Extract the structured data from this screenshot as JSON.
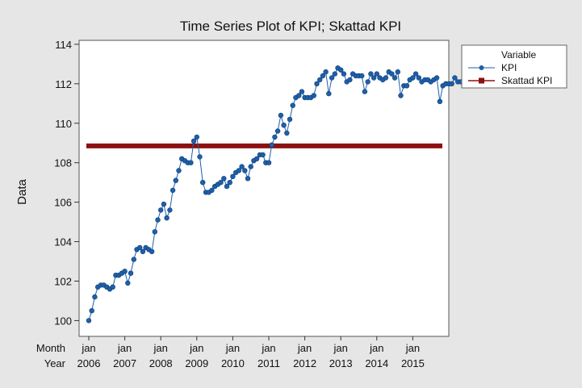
{
  "chart_data": {
    "type": "line",
    "title": "Time Series Plot of KPI; Skattad KPI",
    "ylabel": "Data",
    "xlabel_rows": [
      "Month",
      "Year"
    ],
    "ylim": [
      99.2,
      114.2
    ],
    "yticks": [
      100,
      102,
      104,
      106,
      108,
      110,
      112,
      114
    ],
    "x_tick_months": [
      "jan",
      "jan",
      "jan",
      "jan",
      "jan",
      "jan",
      "jan",
      "jan",
      "jan",
      "jan"
    ],
    "x_tick_years": [
      "2006",
      "2007",
      "2008",
      "2009",
      "2010",
      "2011",
      "2012",
      "2013",
      "2014",
      "2015"
    ],
    "start": "2006-01",
    "grid": false,
    "legend": {
      "title": "Variable",
      "placement": "right",
      "entries": [
        "KPI",
        "Skattad KPI"
      ]
    },
    "colors": {
      "KPI": "#1f5fa8",
      "Skattad KPI": "#8b1010",
      "background": "#e6e6e6",
      "plot_area": "#ffffff"
    },
    "series": [
      {
        "name": "KPI",
        "values": [
          100.0,
          100.5,
          101.2,
          101.7,
          101.8,
          101.8,
          101.7,
          101.6,
          101.7,
          102.3,
          102.3,
          102.4,
          102.5,
          101.9,
          102.4,
          103.1,
          103.6,
          103.7,
          103.5,
          103.7,
          103.6,
          103.5,
          104.5,
          105.1,
          105.6,
          105.9,
          105.2,
          105.6,
          106.6,
          107.1,
          107.6,
          108.2,
          108.1,
          108.0,
          108.0,
          109.1,
          109.3,
          108.3,
          107.0,
          106.5,
          106.5,
          106.6,
          106.8,
          106.9,
          107.0,
          107.2,
          106.8,
          107.0,
          107.3,
          107.5,
          107.6,
          107.8,
          107.6,
          107.2,
          107.8,
          108.1,
          108.2,
          108.4,
          108.4,
          108.0,
          108.0,
          108.9,
          109.3,
          109.6,
          110.4,
          109.9,
          109.5,
          110.2,
          110.9,
          111.3,
          111.4,
          111.6,
          111.3,
          111.3,
          111.3,
          111.4,
          112.0,
          112.2,
          112.4,
          112.6,
          111.5,
          112.3,
          112.5,
          112.8,
          112.7,
          112.5,
          112.1,
          112.2,
          112.5,
          112.4,
          112.4,
          112.4,
          111.6,
          112.1,
          112.5,
          112.3,
          112.5,
          112.3,
          112.2,
          112.3,
          112.6,
          112.5,
          112.3,
          112.6,
          111.4,
          111.9,
          111.9,
          112.2,
          112.3,
          112.5,
          112.3,
          112.1,
          112.2,
          112.2,
          112.1,
          112.2,
          112.3,
          111.1,
          111.9,
          112.0,
          112.0,
          112.0,
          112.3,
          112.1,
          112.1,
          111.9,
          112.3,
          112.4
        ]
      },
      {
        "name": "Skattad KPI",
        "values": [
          108.85,
          108.85
        ]
      }
    ]
  }
}
